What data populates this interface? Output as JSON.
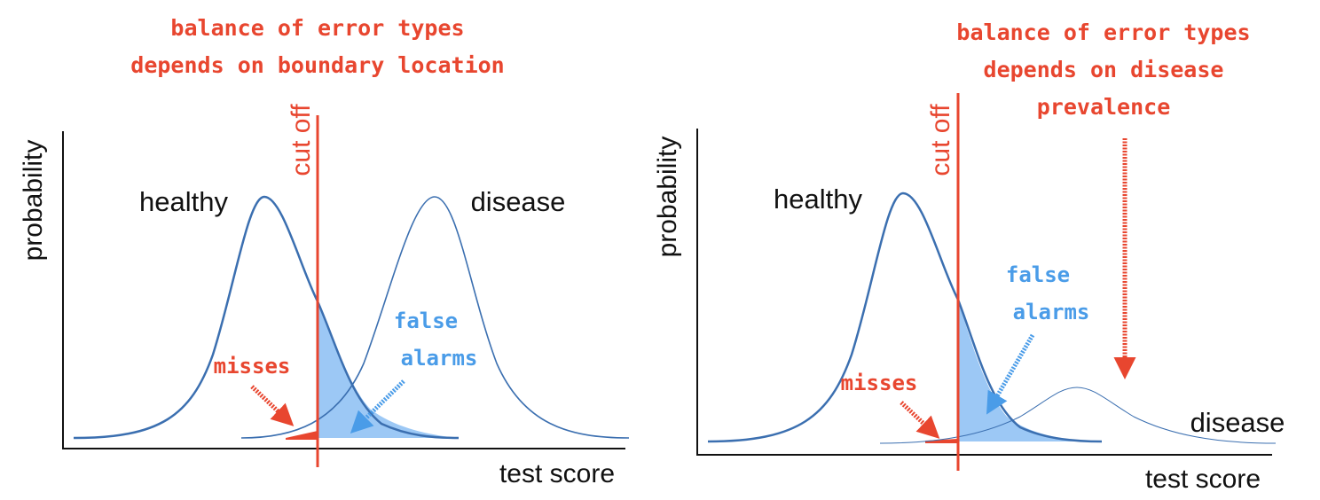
{
  "left_panel": {
    "heading_line1": "balance of error types",
    "heading_line2": "depends on boundary location",
    "ylabel": "probability",
    "xlabel": "test score",
    "cutoff_label": "cut off",
    "healthy_label": "healthy",
    "disease_label": "disease",
    "misses_label": "misses",
    "false_alarms_line1": "false",
    "false_alarms_line2": "alarms"
  },
  "right_panel": {
    "heading_line1": "balance of error types",
    "heading_line2": "depends on disease",
    "heading_line3": "prevalence",
    "ylabel": "probability",
    "xlabel": "test score",
    "cutoff_label": "cut off",
    "healthy_label": "healthy",
    "disease_label": "disease",
    "misses_label": "misses",
    "false_alarms_line1": "false",
    "false_alarms_line2": "alarms"
  },
  "colors": {
    "curve": "#3b6fb0",
    "cutoff": "#e8462f",
    "annotation_red": "#e8462f",
    "annotation_blue": "#4a9ce8",
    "false_alarm_fill": "#9cc8f5"
  }
}
